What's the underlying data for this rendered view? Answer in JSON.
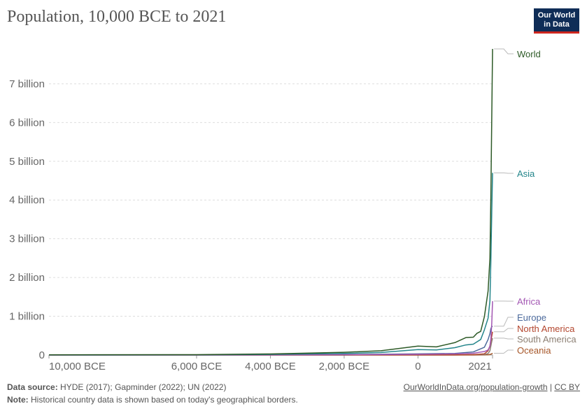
{
  "header": {
    "title": "Population, 10,000 BCE to 2021",
    "logo_line1": "Our World",
    "logo_line2": "in Data"
  },
  "footer": {
    "source_label": "Data source:",
    "source_text": "HYDE (2017); Gapminder (2022); UN (2022)",
    "note_label": "Note:",
    "note_text": "Historical country data is shown based on today's geographical borders.",
    "link_text": "OurWorldInData.org/population-growth",
    "separator": "|",
    "license_text": "CC BY"
  },
  "chart_data": {
    "type": "line",
    "title": "Population, 10,000 BCE to 2021",
    "xlabel": "",
    "ylabel": "",
    "xlim": [
      -10000,
      2021
    ],
    "ylim": [
      0,
      7900000000
    ],
    "grid": true,
    "legend": "right, end-of-line labels",
    "x_ticks": [
      {
        "value": -10000,
        "label": "10,000 BCE"
      },
      {
        "value": -6000,
        "label": "6,000 BCE"
      },
      {
        "value": -4000,
        "label": "4,000 BCE"
      },
      {
        "value": -2000,
        "label": "2,000 BCE"
      },
      {
        "value": 0,
        "label": "0"
      },
      {
        "value": 2021,
        "label": "2021"
      }
    ],
    "y_ticks": [
      {
        "value": 0,
        "label": "0"
      },
      {
        "value": 1000000000,
        "label": "1 billion"
      },
      {
        "value": 2000000000,
        "label": "2 billion"
      },
      {
        "value": 3000000000,
        "label": "3 billion"
      },
      {
        "value": 4000000000,
        "label": "4 billion"
      },
      {
        "value": 5000000000,
        "label": "5 billion"
      },
      {
        "value": 6000000000,
        "label": "6 billion"
      },
      {
        "value": 7000000000,
        "label": "7 billion"
      }
    ],
    "series": [
      {
        "name": "World",
        "color": "#2d5a27",
        "x": [
          -10000,
          -6000,
          -4000,
          -2000,
          -1000,
          0,
          500,
          1000,
          1300,
          1500,
          1600,
          1700,
          1800,
          1900,
          1950,
          1975,
          2000,
          2021
        ],
        "y": [
          4400000,
          10000000,
          28000000,
          70000000,
          110000000,
          230000000,
          210000000,
          320000000,
          450000000,
          460000000,
          560000000,
          610000000,
          990000000,
          1650000000,
          2500000000,
          4060000000,
          6150000000,
          7900000000
        ]
      },
      {
        "name": "Asia",
        "color": "#23858a",
        "x": [
          -10000,
          -6000,
          -4000,
          -2000,
          -1000,
          0,
          500,
          1000,
          1300,
          1500,
          1600,
          1700,
          1800,
          1900,
          1950,
          1975,
          2000,
          2021
        ],
        "y": [
          2000000,
          5000000,
          15000000,
          40000000,
          65000000,
          140000000,
          130000000,
          190000000,
          260000000,
          280000000,
          340000000,
          400000000,
          650000000,
          950000000,
          1400000000,
          2400000000,
          3700000000,
          4700000000
        ]
      },
      {
        "name": "Africa",
        "color": "#a357b3",
        "x": [
          -10000,
          -6000,
          -4000,
          -2000,
          0,
          1000,
          1500,
          1800,
          1900,
          1950,
          1975,
          2000,
          2021
        ],
        "y": [
          300000,
          1000000,
          3000000,
          8000000,
          17000000,
          30000000,
          46000000,
          90000000,
          130000000,
          230000000,
          410000000,
          820000000,
          1390000000
        ]
      },
      {
        "name": "Europe",
        "color": "#4c6a9c",
        "x": [
          -10000,
          -6000,
          -4000,
          -2000,
          0,
          1000,
          1500,
          1800,
          1900,
          1950,
          1975,
          2000,
          2021
        ],
        "y": [
          600000,
          1500000,
          4000000,
          10000000,
          30000000,
          40000000,
          80000000,
          200000000,
          400000000,
          550000000,
          680000000,
          730000000,
          745000000
        ]
      },
      {
        "name": "North America",
        "color": "#b3462e",
        "x": [
          -10000,
          -2000,
          0,
          1000,
          1500,
          1800,
          1900,
          1950,
          2000,
          2021
        ],
        "y": [
          100000,
          1000000,
          2000000,
          3000000,
          10000000,
          30000000,
          110000000,
          230000000,
          490000000,
          600000000
        ]
      },
      {
        "name": "South America",
        "color": "#8c7f73",
        "x": [
          -10000,
          -2000,
          0,
          1000,
          1500,
          1800,
          1900,
          1950,
          2000,
          2021
        ],
        "y": [
          50000,
          1000000,
          2000000,
          3000000,
          8000000,
          10000000,
          40000000,
          110000000,
          350000000,
          435000000
        ]
      },
      {
        "name": "Oceania",
        "color": "#a65628",
        "x": [
          -10000,
          0,
          1500,
          1800,
          1900,
          1950,
          2000,
          2021
        ],
        "y": [
          100000,
          500000,
          1000000,
          2000000,
          6000000,
          13000000,
          31000000,
          44000000
        ]
      }
    ]
  }
}
